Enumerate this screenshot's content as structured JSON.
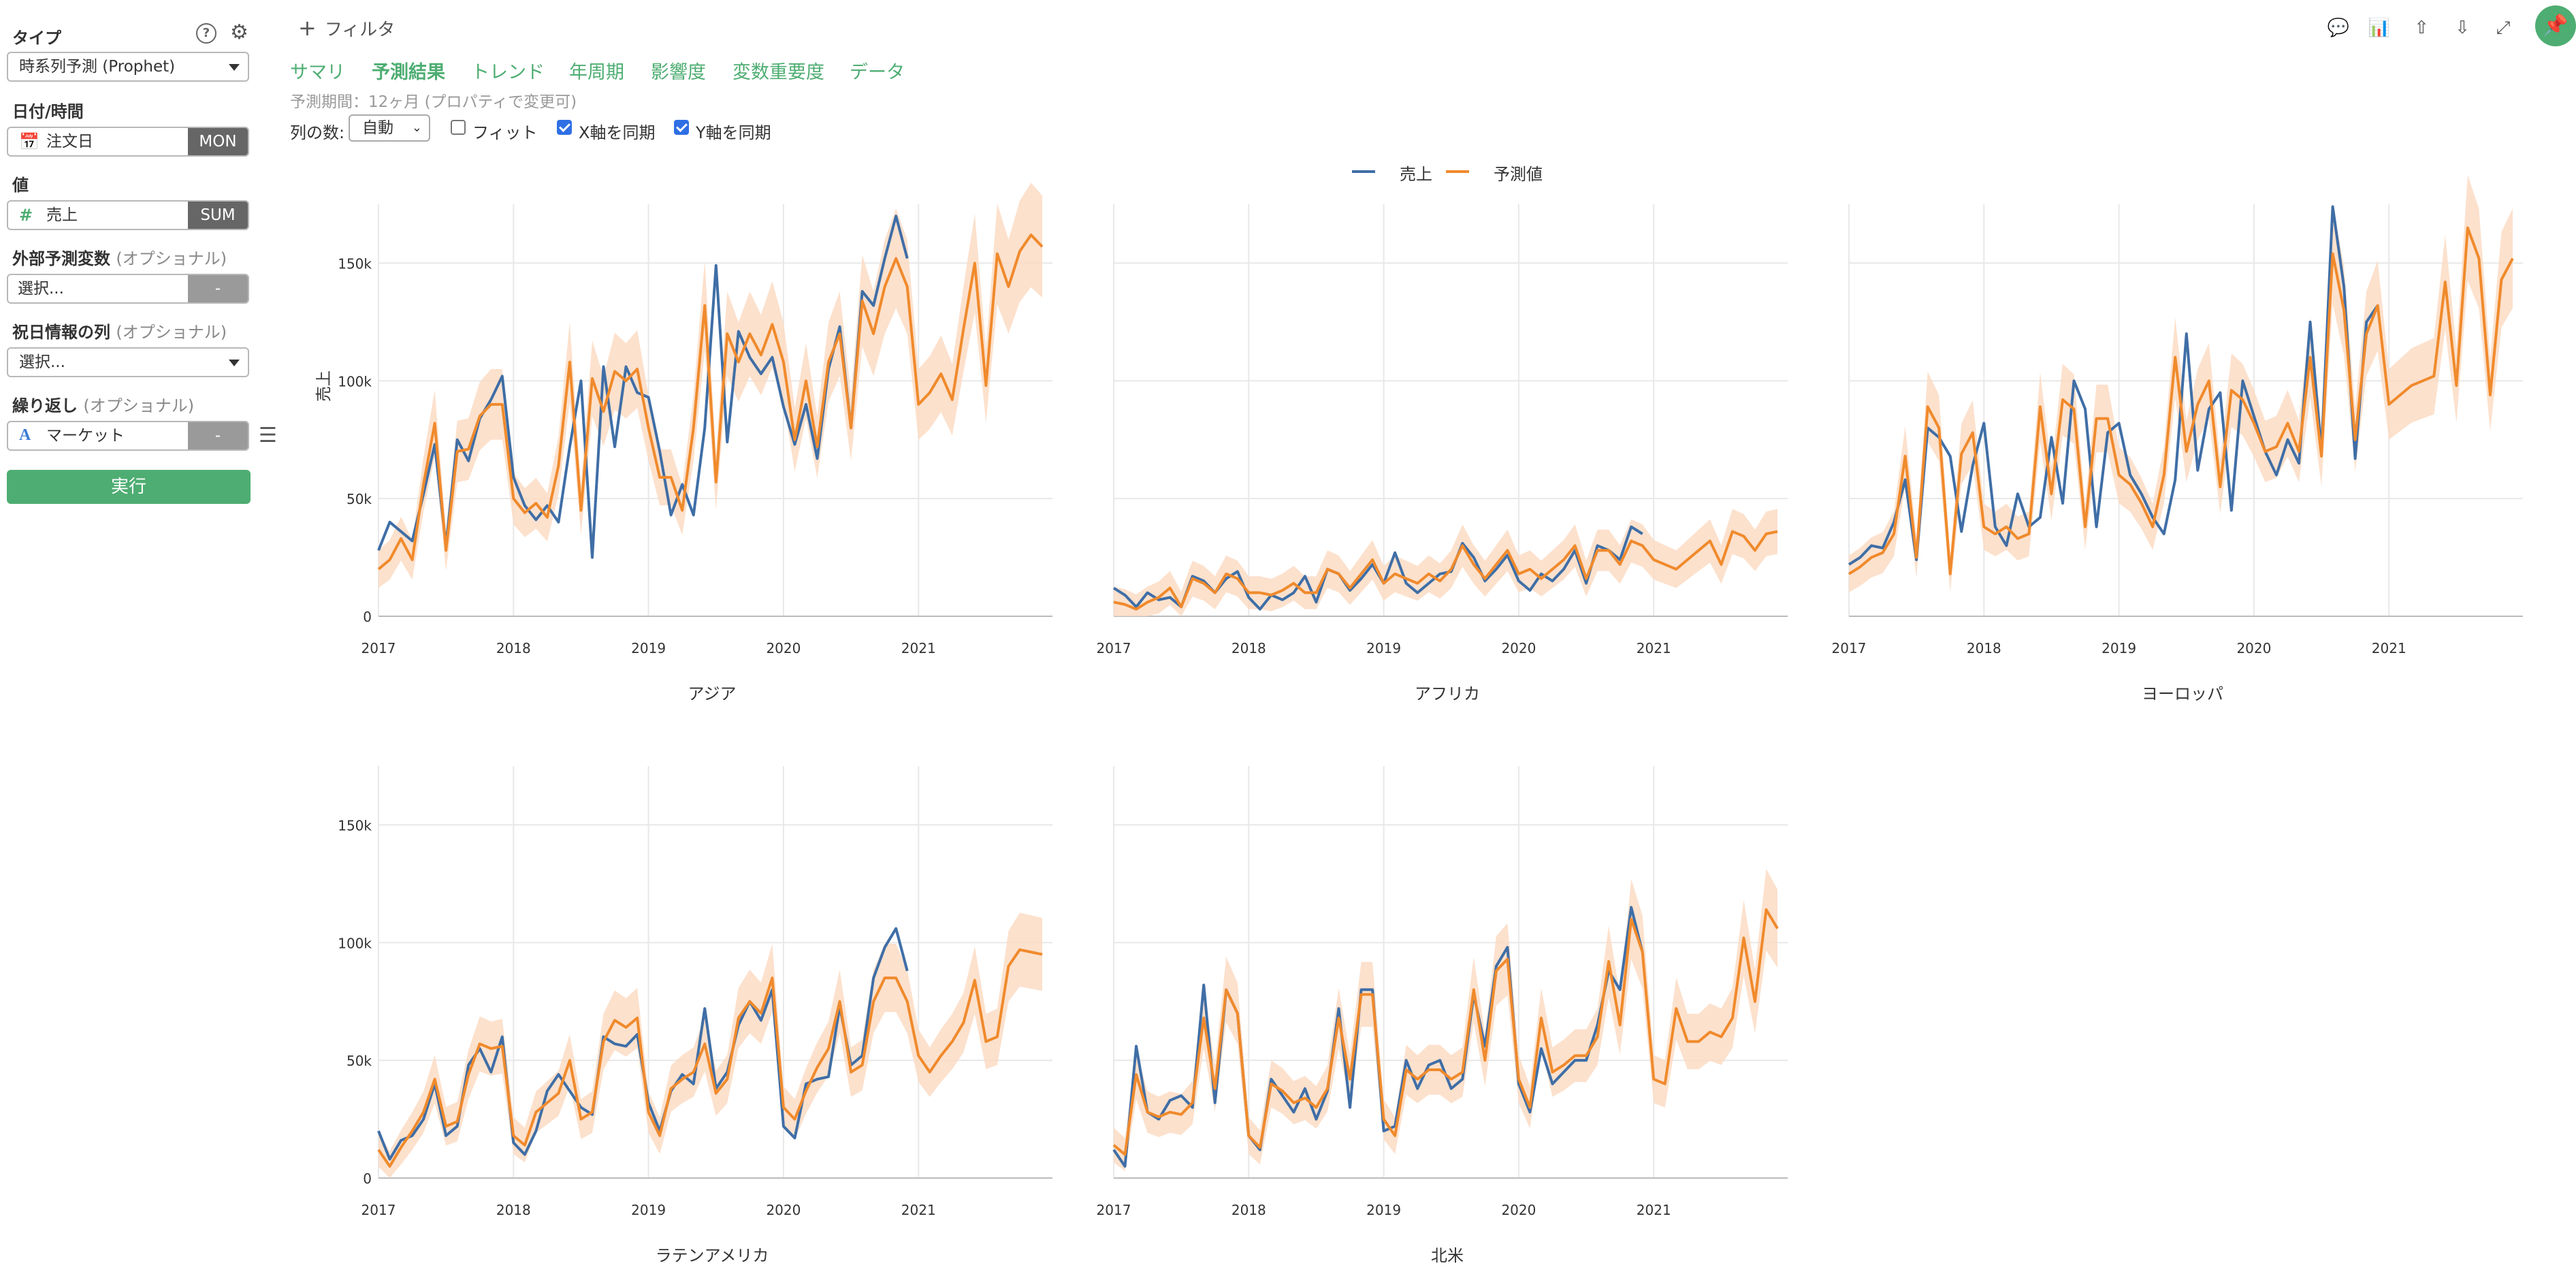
{
  "sidebar": {
    "type_label": "タイプ",
    "type_value": "時系列予測 (Prophet)",
    "date_label": "日付/時間",
    "date_field": "注文日",
    "date_agg": "MON",
    "value_label": "値",
    "value_field": "売上",
    "value_agg": "SUM",
    "ext_label": "外部予測変数",
    "ext_optional": "(オプショナル)",
    "ext_value": "選択...",
    "ext_tag": "-",
    "holiday_label": "祝日情報の列",
    "holiday_optional": "(オプショナル)",
    "holiday_value": "選択...",
    "repeat_label": "繰り返し",
    "repeat_optional": "(オプショナル)",
    "repeat_field": "マーケット",
    "repeat_tag": "-",
    "run_label": "実行"
  },
  "header": {
    "filter_label": "フィルタ",
    "tabs": [
      "サマリ",
      "予測結果",
      "トレンド",
      "年周期",
      "影響度",
      "変数重要度",
      "データ"
    ],
    "active_tab": 1,
    "forecast_note": "予測期間：12ヶ月 (プロパティで変更可)",
    "cols_label": "列の数:",
    "cols_value": "自動",
    "fit_label": "フィット",
    "sync_x_label": "X軸を同期",
    "sync_y_label": "Y軸を同期",
    "fit_checked": false,
    "sync_x_checked": true,
    "sync_y_checked": true
  },
  "colors": {
    "accent": "#4ead72",
    "actual": "#3f6ea6",
    "forecast": "#f08a2c",
    "band": "#fbd9c0"
  },
  "chart_data": {
    "type": "line",
    "ylabel": "売上",
    "ylim": [
      0,
      175000
    ],
    "yticks": [
      0,
      50000,
      100000,
      150000
    ],
    "ytick_labels": [
      "0",
      "50k",
      "100k",
      "150k"
    ],
    "xticks": [
      "2017",
      "2018",
      "2019",
      "2020",
      "2021"
    ],
    "legend": [
      "売上",
      "予測値"
    ],
    "legend_position": "top-center",
    "grid": true,
    "x_start": "2017-01",
    "x_end_actual": "2020-12",
    "x_end_forecast": "2021-12",
    "panels": [
      {
        "title": "アジア",
        "actual": [
          28000,
          40000,
          36000,
          32000,
          52000,
          73000,
          30000,
          75000,
          66000,
          84000,
          92000,
          102000,
          59000,
          47000,
          41000,
          47000,
          40000,
          72000,
          100000,
          25000,
          106000,
          72000,
          106000,
          95000,
          93000,
          70000,
          43000,
          56000,
          43000,
          80000,
          149000,
          74000,
          121000,
          110000,
          103000,
          110000,
          89000,
          73000,
          90000,
          67000,
          105000,
          123000,
          80000,
          138000,
          132000,
          152000,
          170000,
          152000
        ],
        "forecast": [
          20000,
          24000,
          33000,
          24000,
          56000,
          82000,
          28000,
          70000,
          71000,
          85000,
          90000,
          90000,
          50000,
          44000,
          48000,
          42000,
          64000,
          108000,
          45000,
          101000,
          87000,
          104000,
          100000,
          105000,
          80000,
          59000,
          59000,
          45000,
          80000,
          132000,
          57000,
          120000,
          108000,
          120000,
          111000,
          124000,
          108000,
          75000,
          100000,
          72000,
          108000,
          120000,
          80000,
          134000,
          120000,
          140000,
          152000,
          140000,
          90000,
          95000,
          103000,
          92000,
          122000,
          150000,
          98000,
          154000,
          140000,
          155000,
          162000,
          157000
        ]
      },
      {
        "title": "アフリカ",
        "actual": [
          12000,
          9000,
          4000,
          10000,
          7000,
          8000,
          4000,
          17000,
          15000,
          10000,
          16000,
          19000,
          8000,
          3000,
          9000,
          7000,
          10000,
          17000,
          6000,
          20000,
          18000,
          11000,
          16000,
          22000,
          14000,
          27000,
          14000,
          10000,
          14000,
          18000,
          19000,
          31000,
          25000,
          15000,
          20000,
          26000,
          15000,
          11000,
          18000,
          15000,
          20000,
          28000,
          14000,
          30000,
          28000,
          24000,
          38000,
          35000
        ],
        "forecast": [
          6000,
          5000,
          3000,
          6000,
          8000,
          12000,
          4000,
          16000,
          14000,
          10000,
          18000,
          16000,
          10000,
          10000,
          9000,
          11000,
          14000,
          10000,
          10000,
          20000,
          18000,
          12000,
          18000,
          24000,
          14000,
          18000,
          16000,
          14000,
          18000,
          15000,
          20000,
          30000,
          22000,
          16000,
          22000,
          28000,
          18000,
          20000,
          16000,
          20000,
          24000,
          30000,
          16000,
          28000,
          28000,
          22000,
          32000,
          30000,
          24000,
          22000,
          20000,
          24000,
          28000,
          32000,
          22000,
          36000,
          34000,
          28000,
          35000,
          36000
        ]
      },
      {
        "title": "ヨーロッパ",
        "actual": [
          22000,
          25000,
          30000,
          29000,
          40000,
          58000,
          24000,
          80000,
          76000,
          68000,
          36000,
          64000,
          82000,
          38000,
          30000,
          52000,
          38000,
          42000,
          76000,
          48000,
          100000,
          88000,
          38000,
          78000,
          82000,
          60000,
          52000,
          42000,
          35000,
          58000,
          120000,
          62000,
          88000,
          95000,
          45000,
          100000,
          85000,
          70000,
          60000,
          75000,
          65000,
          125000,
          70000,
          174000,
          140000,
          67000,
          125000,
          132000
        ],
        "forecast": [
          18000,
          21000,
          25000,
          27000,
          35000,
          68000,
          25000,
          89000,
          80000,
          18000,
          69000,
          78000,
          38000,
          35000,
          38000,
          33000,
          35000,
          89000,
          52000,
          92000,
          88000,
          38000,
          84000,
          84000,
          60000,
          56000,
          48000,
          38000,
          60000,
          110000,
          70000,
          90000,
          100000,
          55000,
          96000,
          92000,
          82000,
          70000,
          72000,
          82000,
          70000,
          110000,
          68000,
          154000,
          130000,
          75000,
          120000,
          132000,
          90000,
          94000,
          98000,
          100000,
          102000,
          142000,
          98000,
          165000,
          152000,
          94000,
          143000,
          152000
        ]
      },
      {
        "title": "ラテンアメリカ",
        "actual": [
          20000,
          8000,
          16000,
          18000,
          25000,
          40000,
          18000,
          22000,
          48000,
          55000,
          45000,
          60000,
          15000,
          10000,
          20000,
          37000,
          44000,
          37000,
          30000,
          27000,
          60000,
          57000,
          56000,
          61000,
          32000,
          20000,
          37000,
          44000,
          40000,
          72000,
          38000,
          45000,
          65000,
          75000,
          67000,
          80000,
          22000,
          17000,
          40000,
          42000,
          43000,
          73000,
          48000,
          52000,
          85000,
          98000,
          106000,
          88000
        ],
        "forecast": [
          12000,
          5000,
          13000,
          20000,
          28000,
          42000,
          22000,
          24000,
          44000,
          57000,
          55000,
          56000,
          18000,
          14000,
          28000,
          32000,
          36000,
          50000,
          25000,
          28000,
          58000,
          67000,
          64000,
          68000,
          28000,
          18000,
          38000,
          42000,
          45000,
          57000,
          36000,
          42000,
          68000,
          75000,
          70000,
          85000,
          30000,
          25000,
          37000,
          47000,
          55000,
          75000,
          45000,
          48000,
          75000,
          85000,
          85000,
          75000,
          52000,
          45000,
          52000,
          58000,
          66000,
          84000,
          58000,
          60000,
          90000,
          97000,
          96000,
          95000
        ]
      },
      {
        "title": "北米",
        "actual": [
          12000,
          5000,
          56000,
          28000,
          25000,
          33000,
          35000,
          30000,
          82000,
          32000,
          80000,
          70000,
          18000,
          12000,
          42000,
          35000,
          28000,
          38000,
          25000,
          37000,
          72000,
          30000,
          80000,
          80000,
          20000,
          22000,
          50000,
          38000,
          48000,
          50000,
          38000,
          42000,
          78000,
          56000,
          90000,
          98000,
          40000,
          28000,
          55000,
          40000,
          45000,
          50000,
          50000,
          65000,
          88000,
          80000,
          115000,
          96000
        ],
        "forecast": [
          14000,
          10000,
          44000,
          28000,
          26000,
          28000,
          27000,
          32000,
          68000,
          38000,
          80000,
          70000,
          18000,
          13000,
          40000,
          37000,
          32000,
          34000,
          30000,
          38000,
          68000,
          42000,
          78000,
          78000,
          25000,
          18000,
          46000,
          42000,
          46000,
          46000,
          42000,
          45000,
          80000,
          50000,
          88000,
          93000,
          42000,
          30000,
          68000,
          45000,
          48000,
          52000,
          52000,
          60000,
          92000,
          65000,
          110000,
          96000,
          42000,
          40000,
          72000,
          58000,
          58000,
          62000,
          60000,
          68000,
          102000,
          75000,
          114000,
          106000
        ]
      }
    ]
  }
}
